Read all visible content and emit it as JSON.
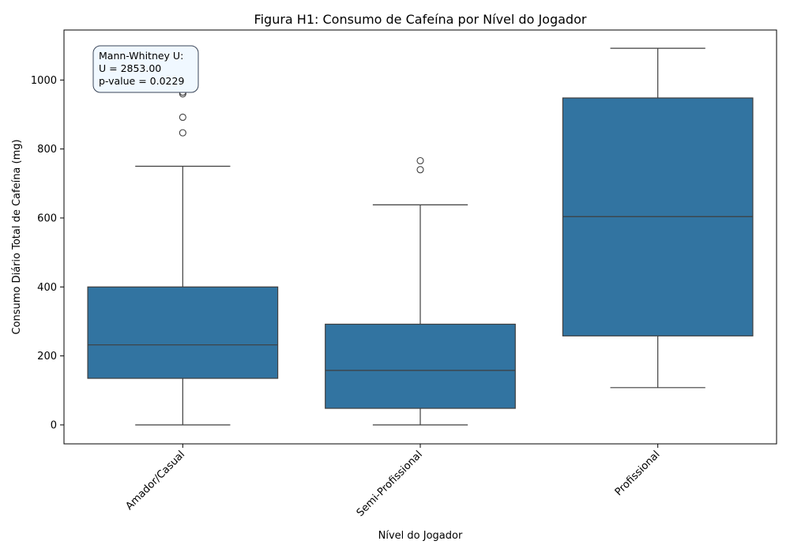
{
  "chart_data": {
    "type": "box",
    "title": "Figura H1: Consumo de Cafeína por Nível do Jogador",
    "xlabel": "Nível do Jogador",
    "ylabel": "Consumo Diário Total de Cafeína (mg)",
    "ylim": [
      -55,
      1145
    ],
    "yticks": [
      0,
      200,
      400,
      600,
      800,
      1000
    ],
    "grid": false,
    "color": "#3274a1",
    "categories": [
      "Amador/Casual",
      "Semi-Profissional",
      "Profissional"
    ],
    "boxes": [
      {
        "category": "Amador/Casual",
        "whisker_low": 0,
        "q1": 135,
        "median": 232,
        "q3": 400,
        "whisker_high": 750,
        "outliers": [
          847,
          892,
          960,
          965
        ]
      },
      {
        "category": "Semi-Profissional",
        "whisker_low": 0,
        "q1": 48,
        "median": 158,
        "q3": 292,
        "whisker_high": 638,
        "outliers": [
          740,
          766
        ]
      },
      {
        "category": "Profissional",
        "whisker_low": 108,
        "q1": 258,
        "median": 604,
        "q3": 948,
        "whisker_high": 1092,
        "outliers": []
      }
    ],
    "annotation": {
      "lines": [
        "Mann-Whitney U:",
        "U = 2853.00",
        "p-value = 0.0229"
      ]
    }
  }
}
